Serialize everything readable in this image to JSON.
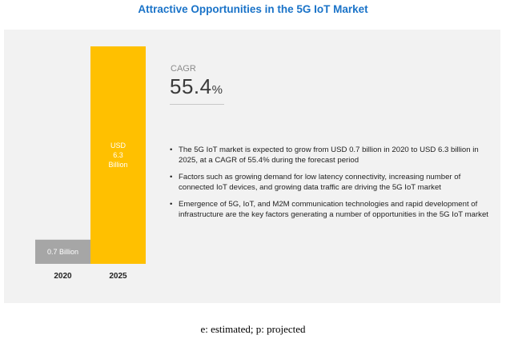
{
  "title": "Attractive Opportunities in the 5G IoT Market",
  "cagr": {
    "label": "CAGR",
    "value": "55.4",
    "unit": "%"
  },
  "bullets": [
    "The 5G IoT market is expected to grow from USD 0.7 billion in 2020 to USD 6.3 billion in 2025, at a CAGR of 55.4% during the forecast period",
    "Factors such as growing demand for low latency connectivity, increasing number of connected IoT devices, and growing data traffic are driving the 5G IoT market",
    "Emergence of 5G, IoT, and M2M communication technologies and rapid development of infrastructure are the key factors generating a number of opportunities in the 5G IoT market"
  ],
  "footnote": "e: estimated; p: projected",
  "chart_data": {
    "type": "bar",
    "categories": [
      "2020",
      "2025"
    ],
    "values": [
      0.7,
      6.3
    ],
    "data_labels": [
      [
        "0.7 Billion"
      ],
      [
        "USD",
        "6.3",
        "Billion"
      ]
    ],
    "colors": [
      "#a6a6a6",
      "#ffc000"
    ],
    "title": "",
    "xlabel": "",
    "ylabel": ""
  }
}
